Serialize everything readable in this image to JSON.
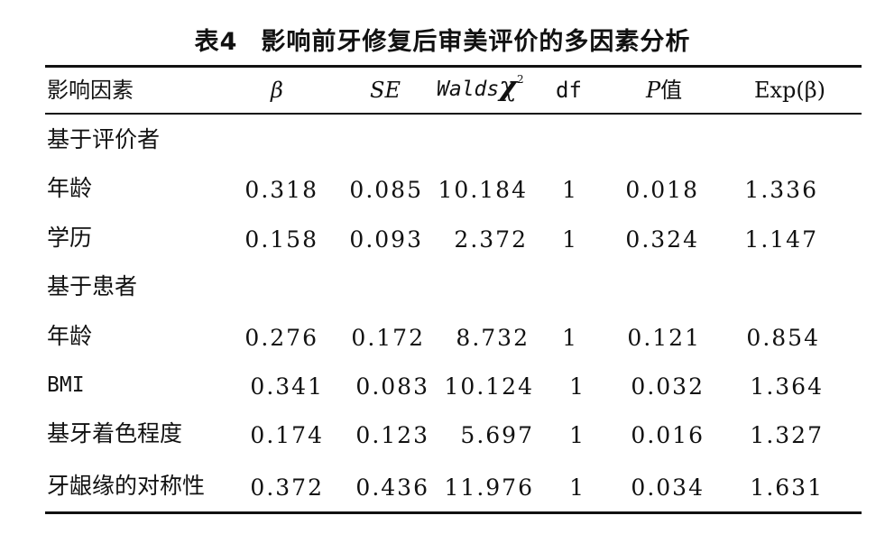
{
  "title": {
    "label": "表4",
    "text": "影响前牙修复后审美评价的多因素分析"
  },
  "headers": {
    "factor": "影响因素",
    "beta": "β",
    "se": "SE",
    "wald_prefix": "Walds",
    "wald_chi": "χ",
    "wald_sup": "2",
    "df": "df",
    "p_italic": "P",
    "p_suffix": "值",
    "exp": "Exp(β)"
  },
  "groups": [
    {
      "label": "基于评价者"
    },
    {
      "label": "基于患者"
    }
  ],
  "rows": [
    {
      "factor": "年龄",
      "beta": "0.318",
      "se": "0.085",
      "wald": "10.184",
      "df": "1",
      "p": "0.018",
      "exp": "1.336"
    },
    {
      "factor": "学历",
      "beta": "0.158",
      "se": "0.093",
      "wald": "2.372",
      "df": "1",
      "p": "0.324",
      "exp": "1.147"
    },
    {
      "factor": "年龄",
      "beta": "0.276",
      "se": "0.172",
      "wald": "8.732",
      "df": "1",
      "p": "0.121",
      "exp": "0.854"
    },
    {
      "factor": "BMI",
      "beta": "0.341",
      "se": "0.083",
      "wald": "10.124",
      "df": "1",
      "p": "0.032",
      "exp": "1.364"
    },
    {
      "factor": "基牙着色程度",
      "beta": "0.174",
      "se": "0.123",
      "wald": "5.697",
      "df": "1",
      "p": "0.016",
      "exp": "1.327"
    },
    {
      "factor": "牙龈缘的对称性",
      "beta": "0.372",
      "se": "0.436",
      "wald": "11.976",
      "df": "1",
      "p": "0.034",
      "exp": "1.631"
    }
  ]
}
